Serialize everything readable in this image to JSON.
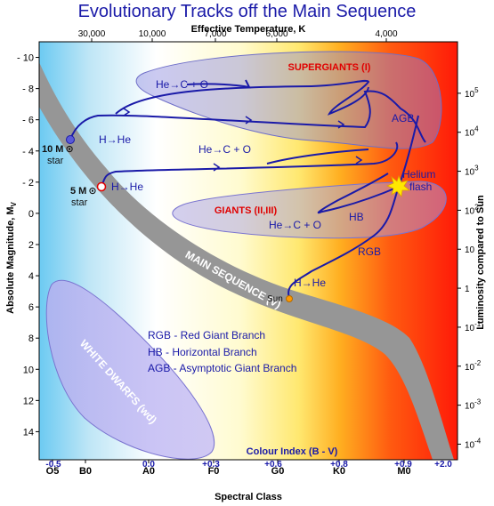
{
  "chart_data": {
    "type": "scatter",
    "title": "Evolutionary Tracks off the Main Sequence",
    "xlabel_top": "Effective Temperature, K",
    "xlabel_bottom": "Spectral Class",
    "ylabel_left": "Absolute Magnitude, M",
    "ylabel_left_sub": "V",
    "ylabel_right": "Luminosity compared to Sun",
    "top_ticks": [
      "30,000",
      "10,000",
      "7,000",
      "6,000",
      "4,000"
    ],
    "bottom_ticks": [
      "O5",
      "B0",
      "A0",
      "F0",
      "G0",
      "K0",
      "M0"
    ],
    "colour_index_title": "Colour Index (B - V)",
    "colour_index_ticks": [
      "-0.5",
      "0.0",
      "+0.3",
      "+0.6",
      "+0.8",
      "+0.9",
      "+2.0"
    ],
    "ylim": [
      -10,
      16
    ],
    "left_ticks": [
      -10,
      -8,
      -6,
      -4,
      -2,
      0,
      2,
      4,
      6,
      8,
      10,
      12,
      14
    ],
    "right_ticks": [
      {
        "base": "10",
        "exp": "5",
        "mag": -7.7
      },
      {
        "base": "10",
        "exp": "4",
        "mag": -5.2
      },
      {
        "base": "10",
        "exp": "3",
        "mag": -2.7
      },
      {
        "base": "10",
        "exp": "2",
        "mag": -0.2
      },
      {
        "base": "10",
        "exp": "",
        "mag": 2.3
      },
      {
        "base": "1",
        "exp": "",
        "mag": 4.8
      },
      {
        "base": "10",
        "exp": "-1",
        "mag": 7.3
      },
      {
        "base": "10",
        "exp": "-2",
        "mag": 9.8
      },
      {
        "base": "10",
        "exp": "-3",
        "mag": 12.3
      },
      {
        "base": "10",
        "exp": "-4",
        "mag": 14.8
      }
    ],
    "regions": [
      "SUPERGIANTS (I)",
      "GIANTS (II,III)",
      "MAIN SEQUENCE (V)",
      "WHITE DWARFS (wd)"
    ],
    "stars": [
      {
        "name": "10 M",
        "suffix": "star",
        "color": "#5a5ad8"
      },
      {
        "name": "5 M",
        "suffix": "star",
        "color": "#ffffff"
      },
      {
        "name": "Sun",
        "color": "#ff9900"
      }
    ],
    "track_labels": [
      "H→He",
      "He→C + O",
      "He→C + O",
      "H→He",
      "He→C + O",
      "H→He",
      "AGB",
      "RGB",
      "HB",
      "Helium",
      "flash"
    ],
    "legend": [
      "RGB - Red Giant Branch",
      "HB   - Horizontal Branch",
      "AGB  - Asymptotic Giant Branch"
    ],
    "colors": {
      "title": "#1a1aa8",
      "track": "#1a1aa8",
      "region_label": "#e00000",
      "main_sequence": "#969696"
    }
  }
}
